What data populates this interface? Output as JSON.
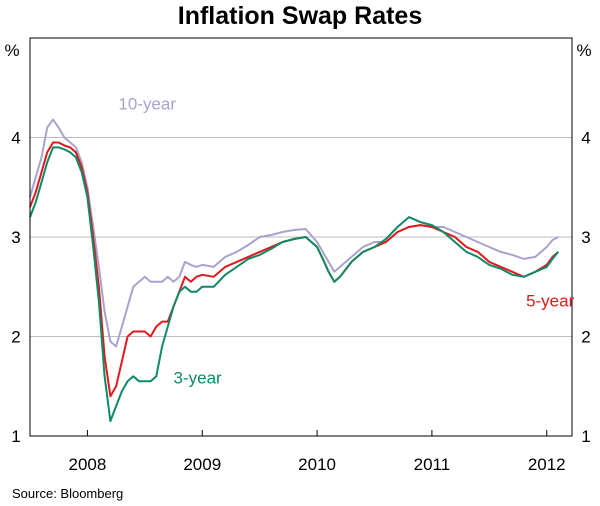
{
  "chart_data": {
    "type": "line",
    "title": "Inflation Swap Rates",
    "source": "Source: Bloomberg",
    "unit_left": "%",
    "unit_right": "%",
    "ylim": [
      1,
      5
    ],
    "y_ticks": [
      1,
      2,
      3,
      4
    ],
    "y_tick_labels": [
      "1",
      "2",
      "3",
      "4"
    ],
    "x_range": [
      2007.5,
      2012.22
    ],
    "x_tick_positions": [
      2008,
      2009,
      2010,
      2011,
      2012
    ],
    "x_labels": [
      {
        "label": "2008",
        "x": 2008.0
      },
      {
        "label": "2009",
        "x": 2009.0
      },
      {
        "label": "2010",
        "x": 2010.0
      },
      {
        "label": "2011",
        "x": 2011.0
      },
      {
        "label": "2012",
        "x": 2012.0
      }
    ],
    "grid": true,
    "series": [
      {
        "name": "10-year",
        "label": "10-year",
        "color": "#a9a1cf",
        "label_x": 2008.27,
        "label_y": 4.28,
        "x": [
          2007.5,
          2007.55,
          2007.6,
          2007.65,
          2007.7,
          2007.75,
          2007.8,
          2007.85,
          2007.9,
          2007.95,
          2008.0,
          2008.05,
          2008.1,
          2008.15,
          2008.2,
          2008.25,
          2008.3,
          2008.35,
          2008.4,
          2008.45,
          2008.5,
          2008.55,
          2008.6,
          2008.65,
          2008.7,
          2008.75,
          2008.8,
          2008.85,
          2008.9,
          2008.95,
          2009.0,
          2009.1,
          2009.2,
          2009.3,
          2009.4,
          2009.5,
          2009.6,
          2009.7,
          2009.8,
          2009.9,
          2010.0,
          2010.05,
          2010.1,
          2010.15,
          2010.2,
          2010.3,
          2010.4,
          2010.5,
          2010.6,
          2010.7,
          2010.8,
          2010.9,
          2011.0,
          2011.1,
          2011.2,
          2011.3,
          2011.4,
          2011.5,
          2011.6,
          2011.7,
          2011.8,
          2011.9,
          2012.0,
          2012.05,
          2012.1
        ],
        "values": [
          3.4,
          3.6,
          3.8,
          4.1,
          4.18,
          4.1,
          4.0,
          3.95,
          3.9,
          3.75,
          3.5,
          3.1,
          2.7,
          2.25,
          1.95,
          1.9,
          2.1,
          2.3,
          2.5,
          2.55,
          2.6,
          2.55,
          2.55,
          2.55,
          2.6,
          2.55,
          2.6,
          2.75,
          2.72,
          2.7,
          2.72,
          2.7,
          2.8,
          2.85,
          2.92,
          3.0,
          3.02,
          3.05,
          3.07,
          3.08,
          2.95,
          2.85,
          2.75,
          2.65,
          2.7,
          2.8,
          2.9,
          2.95,
          2.95,
          3.05,
          3.1,
          3.12,
          3.1,
          3.1,
          3.05,
          3.0,
          2.95,
          2.9,
          2.85,
          2.82,
          2.78,
          2.8,
          2.9,
          2.97,
          3.0
        ]
      },
      {
        "name": "5-year",
        "label": "5-year",
        "color": "#e2191b",
        "label_x": 2011.82,
        "label_y": 2.3,
        "x": [
          2007.5,
          2007.55,
          2007.6,
          2007.65,
          2007.7,
          2007.75,
          2007.8,
          2007.85,
          2007.9,
          2007.95,
          2008.0,
          2008.05,
          2008.1,
          2008.15,
          2008.2,
          2008.25,
          2008.3,
          2008.35,
          2008.4,
          2008.45,
          2008.5,
          2008.55,
          2008.6,
          2008.65,
          2008.7,
          2008.75,
          2008.8,
          2008.85,
          2008.9,
          2008.95,
          2009.0,
          2009.1,
          2009.2,
          2009.3,
          2009.4,
          2009.5,
          2009.6,
          2009.7,
          2009.8,
          2009.9,
          2010.0,
          2010.05,
          2010.1,
          2010.15,
          2010.2,
          2010.3,
          2010.4,
          2010.5,
          2010.6,
          2010.7,
          2010.8,
          2010.9,
          2011.0,
          2011.1,
          2011.2,
          2011.3,
          2011.4,
          2011.5,
          2011.6,
          2011.7,
          2011.8,
          2011.9,
          2012.0,
          2012.05,
          2012.1
        ],
        "values": [
          3.3,
          3.45,
          3.65,
          3.85,
          3.95,
          3.95,
          3.92,
          3.9,
          3.85,
          3.7,
          3.45,
          3.0,
          2.5,
          1.8,
          1.4,
          1.5,
          1.75,
          2.0,
          2.05,
          2.05,
          2.05,
          2.0,
          2.1,
          2.15,
          2.15,
          2.3,
          2.45,
          2.6,
          2.55,
          2.6,
          2.62,
          2.6,
          2.7,
          2.75,
          2.8,
          2.85,
          2.9,
          2.95,
          2.98,
          3.0,
          2.9,
          2.78,
          2.65,
          2.55,
          2.6,
          2.75,
          2.85,
          2.9,
          2.95,
          3.05,
          3.1,
          3.12,
          3.1,
          3.05,
          3.0,
          2.9,
          2.85,
          2.75,
          2.7,
          2.65,
          2.6,
          2.65,
          2.72,
          2.8,
          2.85
        ]
      },
      {
        "name": "3-year",
        "label": "3-year",
        "color": "#0f8a68",
        "label_x": 2008.75,
        "label_y": 1.53,
        "x": [
          2007.5,
          2007.55,
          2007.6,
          2007.65,
          2007.7,
          2007.75,
          2007.8,
          2007.85,
          2007.9,
          2007.95,
          2008.0,
          2008.05,
          2008.1,
          2008.15,
          2008.2,
          2008.25,
          2008.3,
          2008.35,
          2008.4,
          2008.45,
          2008.5,
          2008.55,
          2008.6,
          2008.65,
          2008.7,
          2008.75,
          2008.8,
          2008.85,
          2008.9,
          2008.95,
          2009.0,
          2009.1,
          2009.2,
          2009.3,
          2009.4,
          2009.5,
          2009.6,
          2009.7,
          2009.8,
          2009.9,
          2010.0,
          2010.05,
          2010.1,
          2010.15,
          2010.2,
          2010.3,
          2010.4,
          2010.5,
          2010.6,
          2010.7,
          2010.8,
          2010.9,
          2011.0,
          2011.1,
          2011.2,
          2011.3,
          2011.4,
          2011.5,
          2011.6,
          2011.7,
          2011.8,
          2011.9,
          2012.0,
          2012.05,
          2012.1
        ],
        "values": [
          3.2,
          3.35,
          3.55,
          3.75,
          3.9,
          3.9,
          3.88,
          3.85,
          3.8,
          3.65,
          3.4,
          2.9,
          2.35,
          1.6,
          1.15,
          1.3,
          1.45,
          1.55,
          1.6,
          1.55,
          1.55,
          1.55,
          1.6,
          1.9,
          2.1,
          2.3,
          2.45,
          2.5,
          2.45,
          2.45,
          2.5,
          2.5,
          2.62,
          2.7,
          2.78,
          2.82,
          2.88,
          2.95,
          2.98,
          3.0,
          2.9,
          2.78,
          2.65,
          2.55,
          2.6,
          2.75,
          2.85,
          2.9,
          2.98,
          3.1,
          3.2,
          3.15,
          3.12,
          3.05,
          2.95,
          2.85,
          2.8,
          2.72,
          2.68,
          2.62,
          2.6,
          2.65,
          2.7,
          2.78,
          2.85
        ]
      }
    ]
  }
}
